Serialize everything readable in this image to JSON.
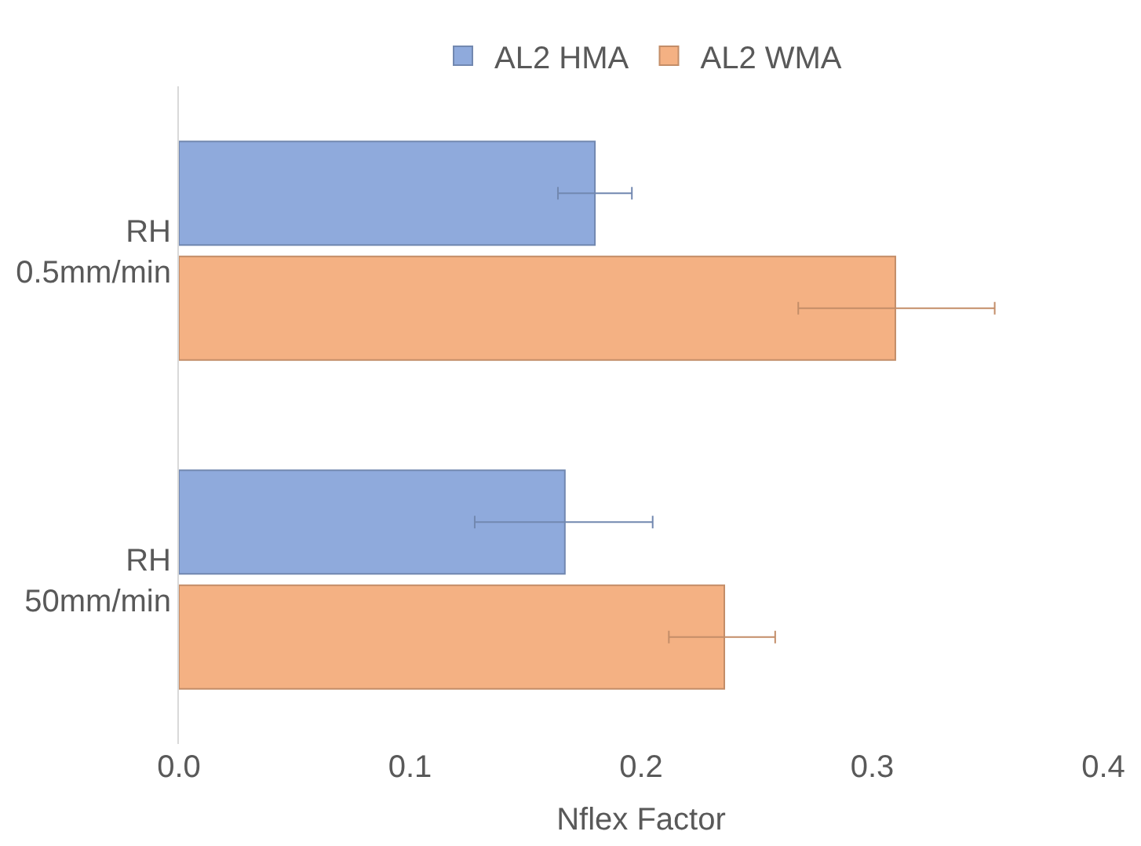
{
  "chart_data": {
    "type": "bar",
    "orientation": "horizontal",
    "xlabel": "Nflex Factor",
    "categories": [
      "RH\n0.5mm/min",
      "RH\n50mm/min"
    ],
    "series": [
      {
        "name": "AL2 HMA",
        "color": "#8faadc",
        "values": [
          0.18,
          0.167
        ],
        "errors": [
          [
            0.164,
            0.196
          ],
          [
            0.128,
            0.205
          ]
        ]
      },
      {
        "name": "AL2 WMA",
        "color": "#f4b183",
        "values": [
          0.31,
          0.236
        ],
        "errors": [
          [
            0.268,
            0.353
          ],
          [
            0.212,
            0.258
          ]
        ]
      }
    ],
    "xlim": [
      0,
      0.4
    ],
    "xticks": [
      {
        "value": 0,
        "label": "0.0"
      },
      0.1,
      0.2,
      0.3,
      0.4
    ],
    "legend": "top"
  }
}
